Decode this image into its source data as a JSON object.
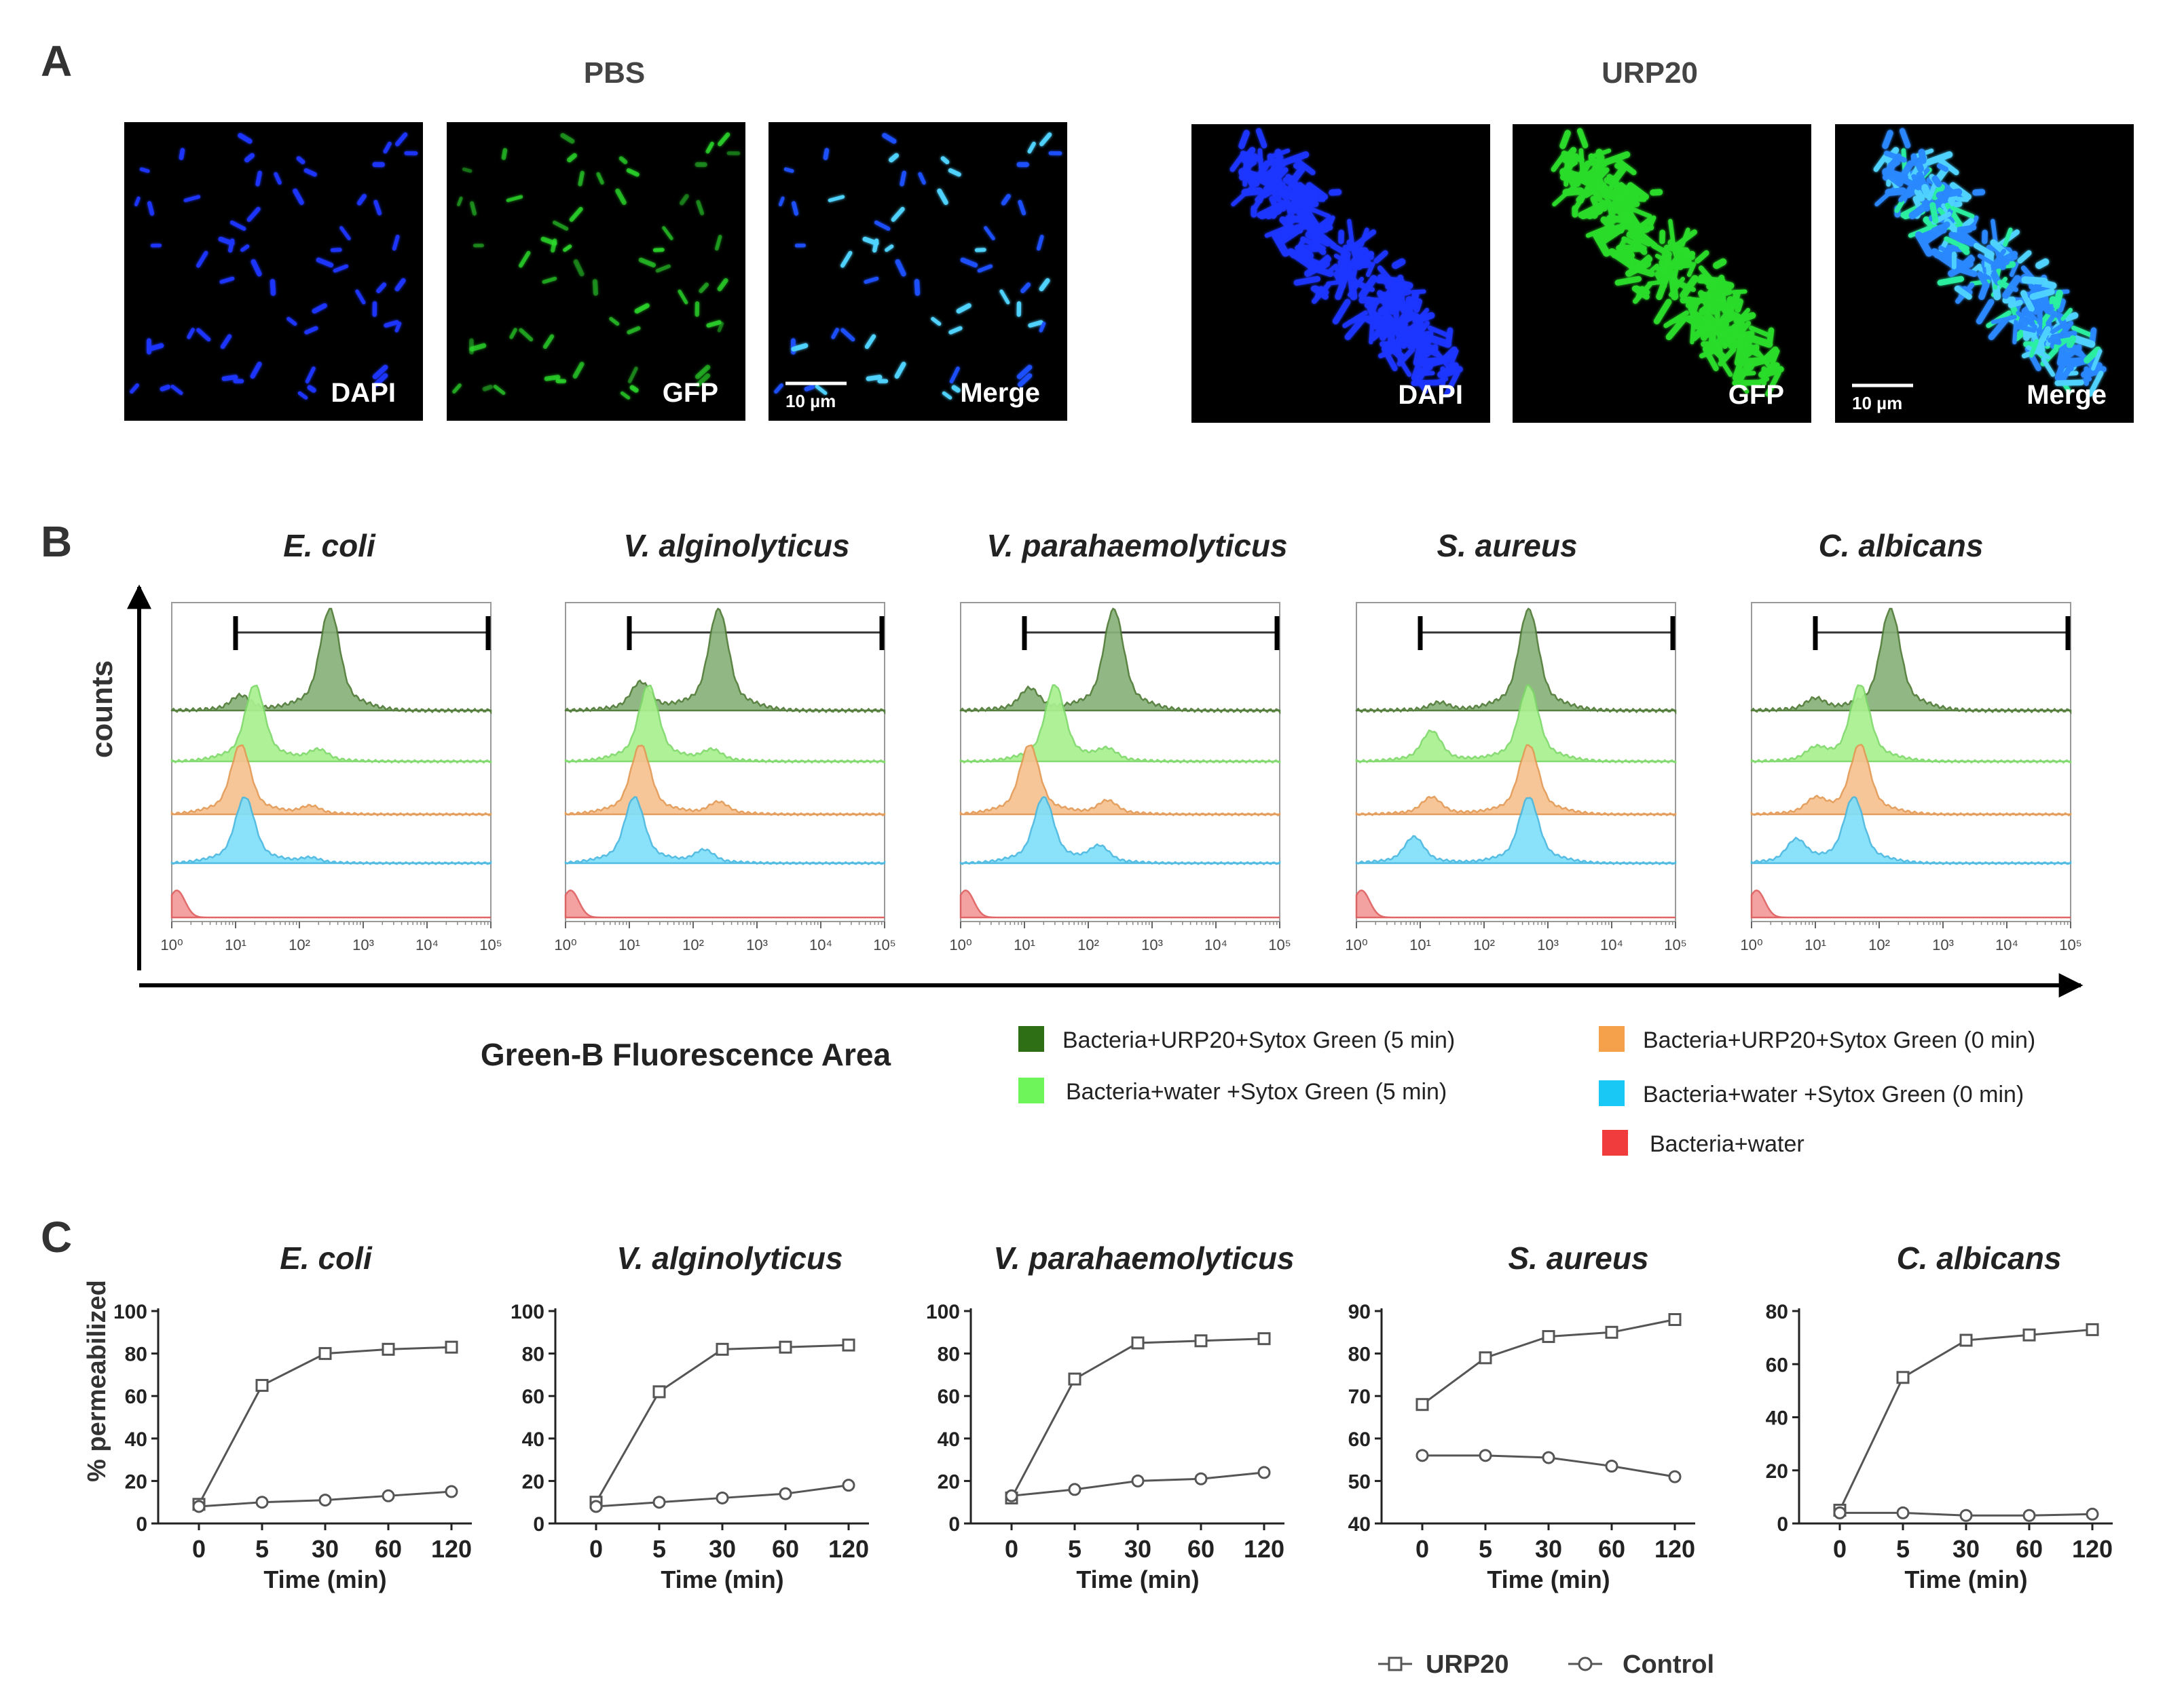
{
  "panel_a": {
    "letter": "A",
    "groups": [
      {
        "title": "PBS",
        "type": "sparse",
        "images": [
          {
            "label": "DAPI",
            "channel": "dapi"
          },
          {
            "label": "GFP",
            "channel": "gfp"
          },
          {
            "label": "Merge",
            "channel": "merge",
            "scale_bar": "10 µm"
          }
        ]
      },
      {
        "title": "URP20",
        "type": "cluster",
        "images": [
          {
            "label": "DAPI",
            "channel": "dapi"
          },
          {
            "label": "GFP",
            "channel": "gfp"
          },
          {
            "label": "Merge",
            "channel": "merge",
            "scale_bar": "10 µm"
          }
        ]
      }
    ],
    "channel_colors": {
      "dapi": "#1f35ff",
      "gfp": "#2bdc2b",
      "merge": "#2aa0ff"
    }
  },
  "panel_b": {
    "letter": "B",
    "y_label": "counts",
    "x_label": "Green-B Fluorescence Area",
    "x_scale": "log",
    "tick_labels": [
      "10⁰",
      "10¹",
      "10²",
      "10³",
      "10⁴",
      "10⁵"
    ],
    "organisms": [
      "E. coli",
      "V. alginolyticus",
      "V. parahaemolyticus",
      "S. aureus",
      "C. albicans"
    ],
    "gate": [
      10,
      100000
    ],
    "legend": [
      {
        "label": "Bacteria+URP20+Sytox Green (5 min)",
        "color": "#2e6e14"
      },
      {
        "label": "Bacteria+URP20+Sytox Green (0 min)",
        "color": "#f5a04a"
      },
      {
        "label": "Bacteria+water +Sytox Green (5 min)",
        "color": "#6ef55a"
      },
      {
        "label": "Bacteria+water +Sytox Green (0 min)",
        "color": "#19c8f5"
      },
      {
        "label": "Bacteria+water",
        "color": "#f03c3c"
      }
    ],
    "track_fills": [
      "#88b27a",
      "#a9f08f",
      "#f7c290",
      "#7fe0fa",
      "#f29a9a"
    ],
    "track_strokes": [
      "#4f7a36",
      "#7ed86a",
      "#e39a55",
      "#4ab8e0",
      "#e06060"
    ],
    "peaks": [
      [
        [
          [
            300,
            1
          ],
          [
            12,
            0.15
          ]
        ],
        [
          [
            20,
            1
          ],
          [
            200,
            0.15
          ]
        ],
        [
          [
            12,
            1
          ],
          [
            150,
            0.12
          ]
        ],
        [
          [
            14,
            1
          ],
          [
            150,
            0.08
          ]
        ],
        [
          [
            1.2,
            1
          ]
        ]
      ],
      [
        [
          [
            250,
            1
          ],
          [
            15,
            0.28
          ]
        ],
        [
          [
            20,
            1
          ],
          [
            200,
            0.15
          ]
        ],
        [
          [
            15,
            1
          ],
          [
            250,
            0.18
          ]
        ],
        [
          [
            12,
            1
          ],
          [
            150,
            0.2
          ]
        ],
        [
          [
            1.2,
            1
          ]
        ]
      ],
      [
        [
          [
            250,
            1
          ],
          [
            12,
            0.22
          ]
        ],
        [
          [
            30,
            1
          ],
          [
            200,
            0.15
          ]
        ],
        [
          [
            12,
            1
          ],
          [
            200,
            0.2
          ]
        ],
        [
          [
            20,
            1
          ],
          [
            150,
            0.25
          ]
        ],
        [
          [
            1.2,
            1
          ]
        ]
      ],
      [
        [
          [
            500,
            1
          ],
          [
            20,
            0.08
          ]
        ],
        [
          [
            500,
            1
          ],
          [
            15,
            0.4
          ]
        ],
        [
          [
            500,
            1
          ],
          [
            15,
            0.25
          ]
        ],
        [
          [
            500,
            1
          ],
          [
            8,
            0.4
          ]
        ],
        [
          [
            1.2,
            1
          ]
        ]
      ],
      [
        [
          [
            150,
            1
          ],
          [
            10,
            0.12
          ]
        ],
        [
          [
            50,
            1
          ],
          [
            10,
            0.15
          ]
        ],
        [
          [
            50,
            1
          ],
          [
            10,
            0.2
          ]
        ],
        [
          [
            40,
            1
          ],
          [
            5,
            0.35
          ]
        ],
        [
          [
            1.2,
            1
          ]
        ]
      ]
    ]
  },
  "panel_c": {
    "letter": "C",
    "y_label": "% permeabilized",
    "x_label": "Time (min)",
    "legend": [
      "URP20",
      "Control"
    ],
    "chart_data": [
      {
        "type": "line",
        "title": "E. coli",
        "categories": [
          "0",
          "5",
          "30",
          "60",
          "120"
        ],
        "ylim": [
          0,
          100
        ],
        "yticks": [
          0,
          20,
          40,
          60,
          80,
          100
        ],
        "series": [
          {
            "name": "URP20",
            "marker": "square",
            "values": [
              9,
              65,
              80,
              82,
              83
            ]
          },
          {
            "name": "Control",
            "marker": "circle",
            "values": [
              8,
              10,
              11,
              13,
              15
            ]
          }
        ]
      },
      {
        "type": "line",
        "title": "V. alginolyticus",
        "categories": [
          "0",
          "5",
          "30",
          "60",
          "120"
        ],
        "ylim": [
          0,
          100
        ],
        "yticks": [
          0,
          20,
          40,
          60,
          80,
          100
        ],
        "series": [
          {
            "name": "URP20",
            "marker": "square",
            "values": [
              10,
              62,
              82,
              83,
              84
            ]
          },
          {
            "name": "Control",
            "marker": "circle",
            "values": [
              8,
              10,
              12,
              14,
              18
            ]
          }
        ]
      },
      {
        "type": "line",
        "title": "V. parahaemolyticus",
        "categories": [
          "0",
          "5",
          "30",
          "60",
          "120"
        ],
        "ylim": [
          0,
          100
        ],
        "yticks": [
          0,
          20,
          40,
          60,
          80,
          100
        ],
        "series": [
          {
            "name": "URP20",
            "marker": "square",
            "values": [
              12,
              68,
              85,
              86,
              87
            ]
          },
          {
            "name": "Control",
            "marker": "circle",
            "values": [
              13,
              16,
              20,
              21,
              24
            ]
          }
        ]
      },
      {
        "type": "line",
        "title": "S. aureus",
        "categories": [
          "0",
          "5",
          "30",
          "60",
          "120"
        ],
        "ylim": [
          40,
          90
        ],
        "yticks": [
          40,
          50,
          60,
          70,
          80,
          90
        ],
        "series": [
          {
            "name": "URP20",
            "marker": "square",
            "values": [
              68,
              79,
              84,
              85,
              88
            ]
          },
          {
            "name": "Control",
            "marker": "circle",
            "values": [
              56,
              56,
              55.5,
              53.5,
              51
            ]
          }
        ]
      },
      {
        "type": "line",
        "title": "C. albicans",
        "categories": [
          "0",
          "5",
          "30",
          "60",
          "120"
        ],
        "ylim": [
          0,
          80
        ],
        "yticks": [
          0,
          20,
          40,
          60,
          80
        ],
        "series": [
          {
            "name": "URP20",
            "marker": "square",
            "values": [
              5,
              55,
              69,
              71,
              73
            ]
          },
          {
            "name": "Control",
            "marker": "circle",
            "values": [
              4,
              4,
              3,
              3,
              3.5
            ]
          }
        ]
      }
    ]
  }
}
